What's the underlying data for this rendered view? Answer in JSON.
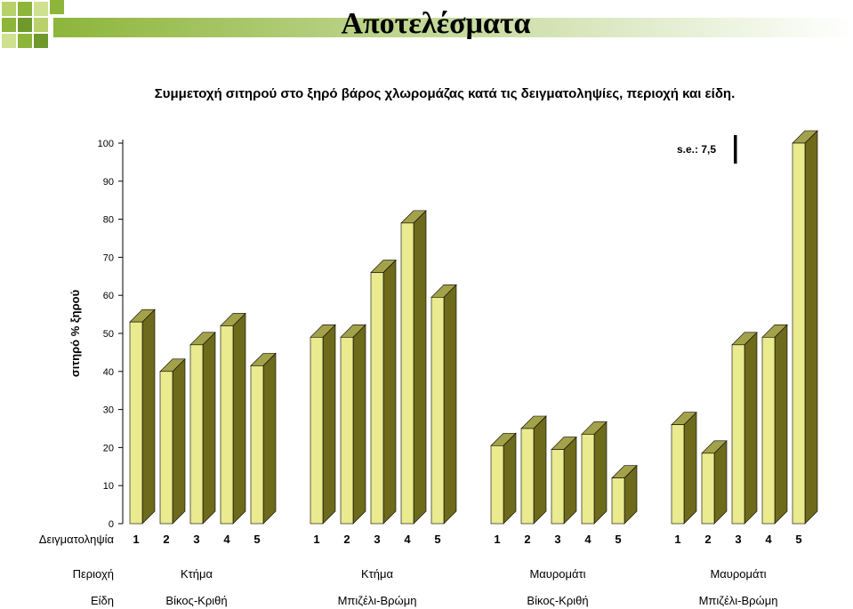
{
  "slide_title": "Αποτελέσματα",
  "colors": {
    "bar_front": "#eaea8e",
    "bar_side": "#6d6a1c",
    "bar_top": "#a3a24a",
    "deco_green": "#8db53a"
  },
  "chart_data": {
    "type": "bar",
    "title": "Συμμετοχή σιτηρού στο ξηρό βάρος χλωρομάζας κατά τις δειγματοληψίες, περιοχή και είδη.",
    "ylabel": "σιτηρό % ξηρού",
    "ylim": [
      0,
      100
    ],
    "yticks": [
      "0",
      "10",
      "20",
      "30",
      "40",
      "50",
      "60",
      "70",
      "80",
      "90",
      "100"
    ],
    "grid": false,
    "annotation": "s.e.: 7,5",
    "row_labels": {
      "sampling": "Δειγματοληψία",
      "area": "Περιοχή",
      "species": "Είδη"
    },
    "groups": [
      {
        "area": "Κτήμα",
        "species": "Βίκος-Κριθή",
        "categories": [
          "1",
          "2",
          "3",
          "4",
          "5"
        ],
        "values": [
          53,
          40,
          47,
          52,
          41.5
        ]
      },
      {
        "area": "Κτήμα",
        "species": "Μπιζέλι-Βρώμη",
        "categories": [
          "1",
          "2",
          "3",
          "4",
          "5"
        ],
        "values": [
          49,
          49,
          66,
          79,
          59.5
        ]
      },
      {
        "area": "Μαυρομάτι",
        "species": "Βίκος-Κριθή",
        "categories": [
          "1",
          "2",
          "3",
          "4",
          "5"
        ],
        "values": [
          20.5,
          25,
          19.5,
          23.5,
          12
        ]
      },
      {
        "area": "Μαυρομάτι",
        "species": "Μπιζέλι-Βρώμη",
        "categories": [
          "1",
          "2",
          "3",
          "4",
          "5"
        ],
        "values": [
          26,
          18.5,
          47,
          49,
          100
        ]
      }
    ]
  }
}
